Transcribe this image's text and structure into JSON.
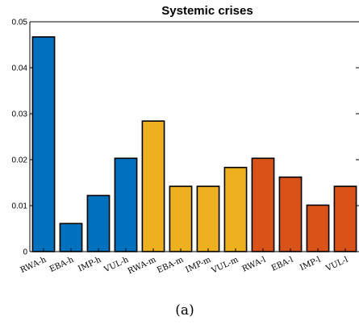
{
  "chart_data": {
    "type": "bar",
    "title": "Systemic crises",
    "categories": [
      "RWA-h",
      "EBA-h",
      "IMP-h",
      "VUL-h",
      "RWA-m",
      "EBA-m",
      "IMP-m",
      "VUL-m",
      "RWA-l",
      "EBA-l",
      "IMP-l",
      "VUL-l"
    ],
    "values": [
      0.0467,
      0.0061,
      0.0122,
      0.0203,
      0.0284,
      0.0142,
      0.0142,
      0.0183,
      0.0203,
      0.0162,
      0.0101,
      0.0142
    ],
    "colors": [
      "#0072BD",
      "#0072BD",
      "#0072BD",
      "#0072BD",
      "#EDB120",
      "#EDB120",
      "#EDB120",
      "#EDB120",
      "#D95319",
      "#D95319",
      "#D95319",
      "#D95319"
    ],
    "xlabel": "",
    "ylabel": "",
    "ylim": [
      0,
      0.05
    ],
    "yticks": [
      "0",
      "0.01",
      "0.02",
      "0.03",
      "0.04",
      "0.05"
    ],
    "grid": false,
    "legend": "none"
  },
  "caption": "(a)"
}
